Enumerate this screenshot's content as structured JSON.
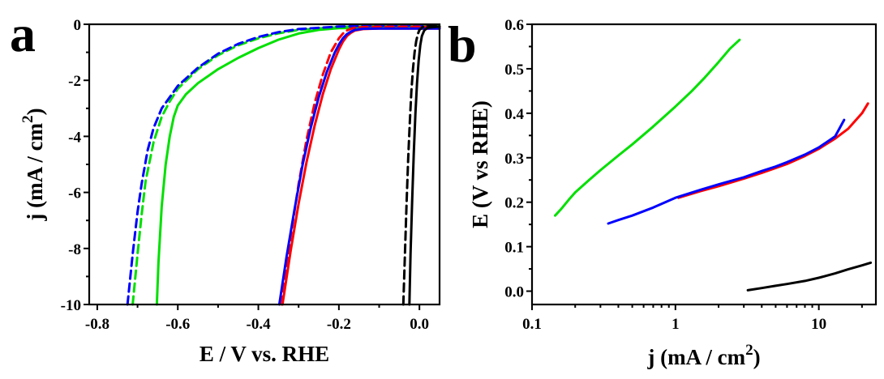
{
  "chart_data": [
    {
      "type": "line",
      "panel_label": "a",
      "xlabel": "E / V vs. RHE",
      "ylabel": "j (mA / cm",
      "ylabel_sup": "2",
      "ylabel_close": ")",
      "xlim": [
        -0.82,
        0.05
      ],
      "ylim": [
        -10,
        0
      ],
      "xticks": [
        -0.8,
        -0.6,
        -0.4,
        -0.2,
        0.0
      ],
      "xtick_labels": [
        "-0.8",
        "-0.6",
        "-0.4",
        "-0.2",
        "0.0"
      ],
      "yticks": [
        0,
        -2,
        -4,
        -6,
        -8,
        -10
      ],
      "ytick_labels": [
        "0",
        "-2",
        "-4",
        "-6",
        "-8",
        "-10"
      ],
      "series": [
        {
          "color": "#00e000",
          "dash": "solid",
          "x": [
            -0.652,
            -0.648,
            -0.64,
            -0.63,
            -0.62,
            -0.61,
            -0.6,
            -0.58,
            -0.55,
            -0.5,
            -0.45,
            -0.4,
            -0.35,
            -0.3,
            -0.25,
            -0.2,
            -0.1,
            0.0,
            0.05
          ],
          "y": [
            -10,
            -8.5,
            -6.5,
            -5.0,
            -4.0,
            -3.3,
            -2.9,
            -2.5,
            -2.1,
            -1.6,
            -1.2,
            -0.85,
            -0.55,
            -0.33,
            -0.2,
            -0.14,
            -0.12,
            -0.12,
            -0.12
          ]
        },
        {
          "color": "#00e000",
          "dash": "dashed",
          "x": [
            -0.712,
            -0.7,
            -0.69,
            -0.68,
            -0.66,
            -0.64,
            -0.62,
            -0.6,
            -0.55,
            -0.5,
            -0.45,
            -0.4,
            -0.35,
            -0.3,
            -0.2,
            -0.1,
            0.0,
            0.05
          ],
          "y": [
            -10,
            -8.2,
            -6.8,
            -5.6,
            -4.2,
            -3.3,
            -2.75,
            -2.3,
            -1.6,
            -1.1,
            -0.75,
            -0.5,
            -0.32,
            -0.2,
            -0.1,
            -0.06,
            -0.05,
            -0.05
          ]
        },
        {
          "color": "#0000ff",
          "dash": "dashed",
          "x": [
            -0.725,
            -0.712,
            -0.7,
            -0.69,
            -0.675,
            -0.66,
            -0.64,
            -0.62,
            -0.6,
            -0.55,
            -0.5,
            -0.45,
            -0.4,
            -0.35,
            -0.3,
            -0.2,
            -0.1,
            0.0,
            0.05
          ],
          "y": [
            -10,
            -8.2,
            -6.7,
            -5.7,
            -4.5,
            -3.7,
            -3.0,
            -2.6,
            -2.2,
            -1.55,
            -1.05,
            -0.7,
            -0.45,
            -0.28,
            -0.17,
            -0.08,
            -0.05,
            -0.04,
            -0.04
          ]
        },
        {
          "color": "#ff0000",
          "dash": "solid",
          "x": [
            -0.34,
            -0.32,
            -0.3,
            -0.28,
            -0.26,
            -0.24,
            -0.22,
            -0.2,
            -0.19,
            -0.18,
            -0.17,
            -0.16,
            -0.14,
            -0.1,
            0.0,
            0.05
          ],
          "y": [
            -10,
            -8.1,
            -6.4,
            -4.9,
            -3.6,
            -2.5,
            -1.6,
            -0.9,
            -0.62,
            -0.42,
            -0.3,
            -0.22,
            -0.17,
            -0.15,
            -0.15,
            -0.15
          ]
        },
        {
          "color": "#ff0000",
          "dash": "dashed",
          "x": [
            -0.342,
            -0.32,
            -0.3,
            -0.28,
            -0.26,
            -0.24,
            -0.22,
            -0.2,
            -0.19,
            -0.18,
            -0.17,
            -0.16,
            -0.14,
            -0.1,
            0.0,
            0.05
          ],
          "y": [
            -10,
            -7.6,
            -5.7,
            -4.1,
            -2.8,
            -1.8,
            -1.0,
            -0.5,
            -0.33,
            -0.22,
            -0.16,
            -0.12,
            -0.1,
            -0.09,
            -0.09,
            -0.09
          ]
        },
        {
          "color": "#0000ff",
          "dash": "solid",
          "x": [
            -0.348,
            -0.33,
            -0.31,
            -0.29,
            -0.27,
            -0.25,
            -0.23,
            -0.21,
            -0.2,
            -0.19,
            -0.18,
            -0.17,
            -0.16,
            -0.14,
            -0.1,
            0.0,
            0.05
          ],
          "y": [
            -10,
            -8.3,
            -6.6,
            -5.0,
            -3.7,
            -2.6,
            -1.7,
            -1.0,
            -0.72,
            -0.5,
            -0.35,
            -0.26,
            -0.2,
            -0.16,
            -0.15,
            -0.15,
            -0.15
          ]
        },
        {
          "color": "#000000",
          "dash": "solid",
          "x": [
            -0.025,
            -0.022,
            -0.018,
            -0.014,
            -0.01,
            -0.006,
            -0.002,
            0.002,
            0.006,
            0.012,
            0.02,
            0.05
          ],
          "y": [
            -10,
            -8.2,
            -6.3,
            -4.6,
            -3.2,
            -2.1,
            -1.3,
            -0.75,
            -0.42,
            -0.22,
            -0.12,
            -0.08
          ]
        },
        {
          "color": "#000000",
          "dash": "dashed",
          "x": [
            -0.04,
            -0.036,
            -0.032,
            -0.028,
            -0.024,
            -0.02,
            -0.016,
            -0.012,
            -0.008,
            -0.004,
            0.0,
            0.01,
            0.05
          ],
          "y": [
            -10,
            -8.2,
            -6.4,
            -4.8,
            -3.5,
            -2.4,
            -1.6,
            -1.0,
            -0.6,
            -0.35,
            -0.2,
            -0.08,
            -0.05
          ]
        }
      ]
    },
    {
      "type": "line",
      "panel_label": "b",
      "xlabel": "j (mA / cm",
      "xlabel_sup": "2",
      "xlabel_close": ")",
      "ylabel": "E (V vs RHE)",
      "xscale": "log",
      "xlim": [
        0.1,
        25
      ],
      "ylim": [
        -0.03,
        0.6
      ],
      "xticks": [
        0.1,
        1,
        10
      ],
      "xtick_labels": [
        "0.1",
        "1",
        "10"
      ],
      "yticks": [
        0.0,
        0.1,
        0.2,
        0.3,
        0.4,
        0.5,
        0.6
      ],
      "ytick_labels": [
        "0.0",
        "0.1",
        "0.2",
        "0.3",
        "0.4",
        "0.5",
        "0.6"
      ],
      "series": [
        {
          "color": "#00e000",
          "x": [
            0.145,
            0.16,
            0.18,
            0.2,
            0.25,
            0.3,
            0.4,
            0.5,
            0.7,
            1.0,
            1.3,
            1.6,
            2.0,
            2.4,
            2.8
          ],
          "y": [
            0.17,
            0.185,
            0.205,
            0.222,
            0.25,
            0.272,
            0.305,
            0.33,
            0.37,
            0.415,
            0.45,
            0.48,
            0.515,
            0.545,
            0.565
          ]
        },
        {
          "color": "#ff0000",
          "x": [
            1.05,
            1.5,
            2,
            3,
            4,
            5,
            6,
            8,
            10,
            13,
            16,
            20,
            22
          ],
          "y": [
            0.21,
            0.225,
            0.236,
            0.253,
            0.266,
            0.277,
            0.286,
            0.304,
            0.32,
            0.343,
            0.365,
            0.4,
            0.422
          ]
        },
        {
          "color": "#0000ff",
          "x": [
            0.34,
            0.4,
            0.5,
            0.7,
            1.0,
            1.5,
            2,
            3,
            4,
            5,
            6,
            8,
            10,
            13,
            15
          ],
          "y": [
            0.152,
            0.16,
            0.17,
            0.188,
            0.21,
            0.228,
            0.24,
            0.256,
            0.27,
            0.28,
            0.29,
            0.307,
            0.323,
            0.348,
            0.385
          ]
        },
        {
          "color": "#000000",
          "x": [
            3.2,
            4,
            5,
            6,
            8,
            10,
            13,
            16,
            20,
            23
          ],
          "y": [
            0.002,
            0.007,
            0.012,
            0.016,
            0.023,
            0.03,
            0.04,
            0.049,
            0.058,
            0.064
          ]
        }
      ]
    }
  ]
}
